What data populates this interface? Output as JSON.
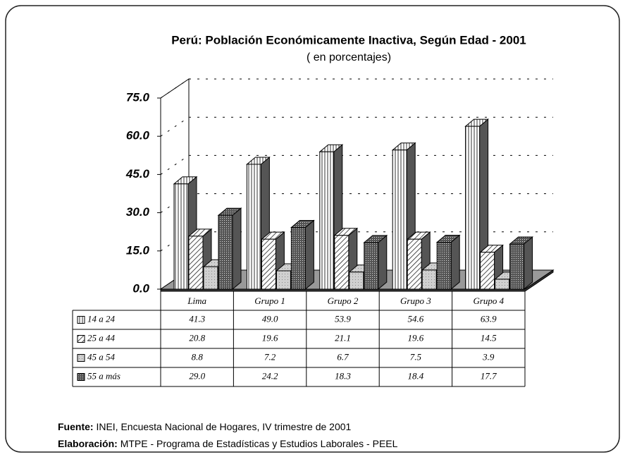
{
  "chart_data": {
    "type": "bar3d",
    "title": "Perú: Población Económicamente Inactiva, Según Edad - 2001",
    "subtitle": "( en porcentajes)",
    "categories": [
      "Lima",
      "Grupo 1",
      "Grupo 2",
      "Grupo 3",
      "Grupo 4"
    ],
    "series": [
      {
        "name": "14 a 24",
        "color": "#f2f2f2",
        "values": [
          41.3,
          49.0,
          53.9,
          54.6,
          63.9
        ],
        "value_labels": [
          "41.3",
          "49.0",
          "53.9",
          "54.6",
          "63.9"
        ]
      },
      {
        "name": "25 a 44",
        "color": "#ffffff",
        "values": [
          20.8,
          19.6,
          21.1,
          19.6,
          14.5
        ],
        "value_labels": [
          "20.8",
          "19.6",
          "21.1",
          "19.6",
          "14.5"
        ]
      },
      {
        "name": "45 a 54",
        "color": "#c8c8c8",
        "values": [
          8.8,
          7.2,
          6.7,
          7.5,
          3.9
        ],
        "value_labels": [
          "8.8",
          "7.2",
          "6.7",
          "7.5",
          "3.9"
        ]
      },
      {
        "name": "55 a más",
        "color": "#7a7a7a",
        "values": [
          29.0,
          24.2,
          18.3,
          18.4,
          17.7
        ],
        "value_labels": [
          "29.0",
          "24.2",
          "18.3",
          "18.4",
          "17.7"
        ]
      }
    ],
    "ylim": [
      0,
      75
    ],
    "yticks": [
      {
        "value": 0,
        "label": "0.0"
      },
      {
        "value": 15,
        "label": "15.0"
      },
      {
        "value": 30,
        "label": "30.0"
      },
      {
        "value": 45,
        "label": "45.0"
      },
      {
        "value": 60,
        "label": "60.0"
      },
      {
        "value": 75,
        "label": "75.0"
      }
    ],
    "grid": true,
    "source": {
      "label": "Fuente:",
      "text": "INEI, Encuesta Nacional de Hogares, IV trimestre de 2001"
    },
    "credit": {
      "label": "Elaboración:",
      "text": "MTPE -  Programa de Estadísticas y Estudios Laborales - PEEL"
    }
  }
}
